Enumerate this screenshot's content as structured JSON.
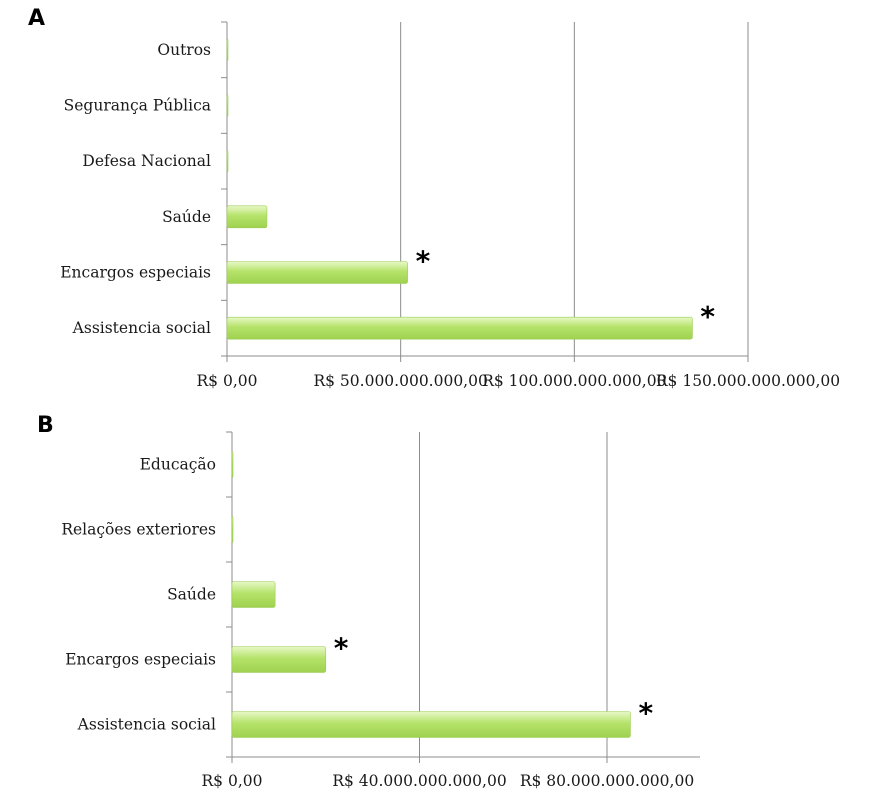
{
  "chart_data": [
    {
      "type": "bar",
      "orientation": "horizontal",
      "panel_label": "A",
      "categories": [
        "Outros",
        "Segurança Pública",
        "Defesa Nacional",
        "Saúde",
        "Encargos especiais",
        "Assistencia social"
      ],
      "values": [
        0,
        0,
        0,
        11500000000,
        52000000000,
        134000000000
      ],
      "significant": [
        false,
        false,
        false,
        false,
        true,
        true
      ],
      "significance_marker": "*",
      "xlim": [
        0,
        150000000000
      ],
      "xticks": [
        0,
        50000000000,
        100000000000,
        150000000000
      ],
      "xtick_labels": [
        "R$ 0,00",
        "R$ 50.000.000.000,00",
        "R$ 100.000.000.000,00",
        "R$ 150.000.000.000,00"
      ],
      "grid": "vertical",
      "bar_color": "#b5e36a"
    },
    {
      "type": "bar",
      "orientation": "horizontal",
      "panel_label": "B",
      "categories": [
        "Educação",
        "Relações exteriores",
        "Saúde",
        "Encargos especiais",
        "Assistencia social"
      ],
      "values": [
        0,
        0,
        9200000000,
        20000000000,
        85000000000
      ],
      "significant": [
        false,
        false,
        false,
        true,
        true
      ],
      "significance_marker": "*",
      "xlim": [
        0,
        100000000000
      ],
      "xticks": [
        0,
        40000000000,
        80000000000
      ],
      "xtick_labels": [
        "R$ 0,00",
        "R$ 40.000.000.000,00",
        "R$ 80.000.000.000,00"
      ],
      "grid": "vertical",
      "bar_color": "#b5e36a"
    }
  ]
}
